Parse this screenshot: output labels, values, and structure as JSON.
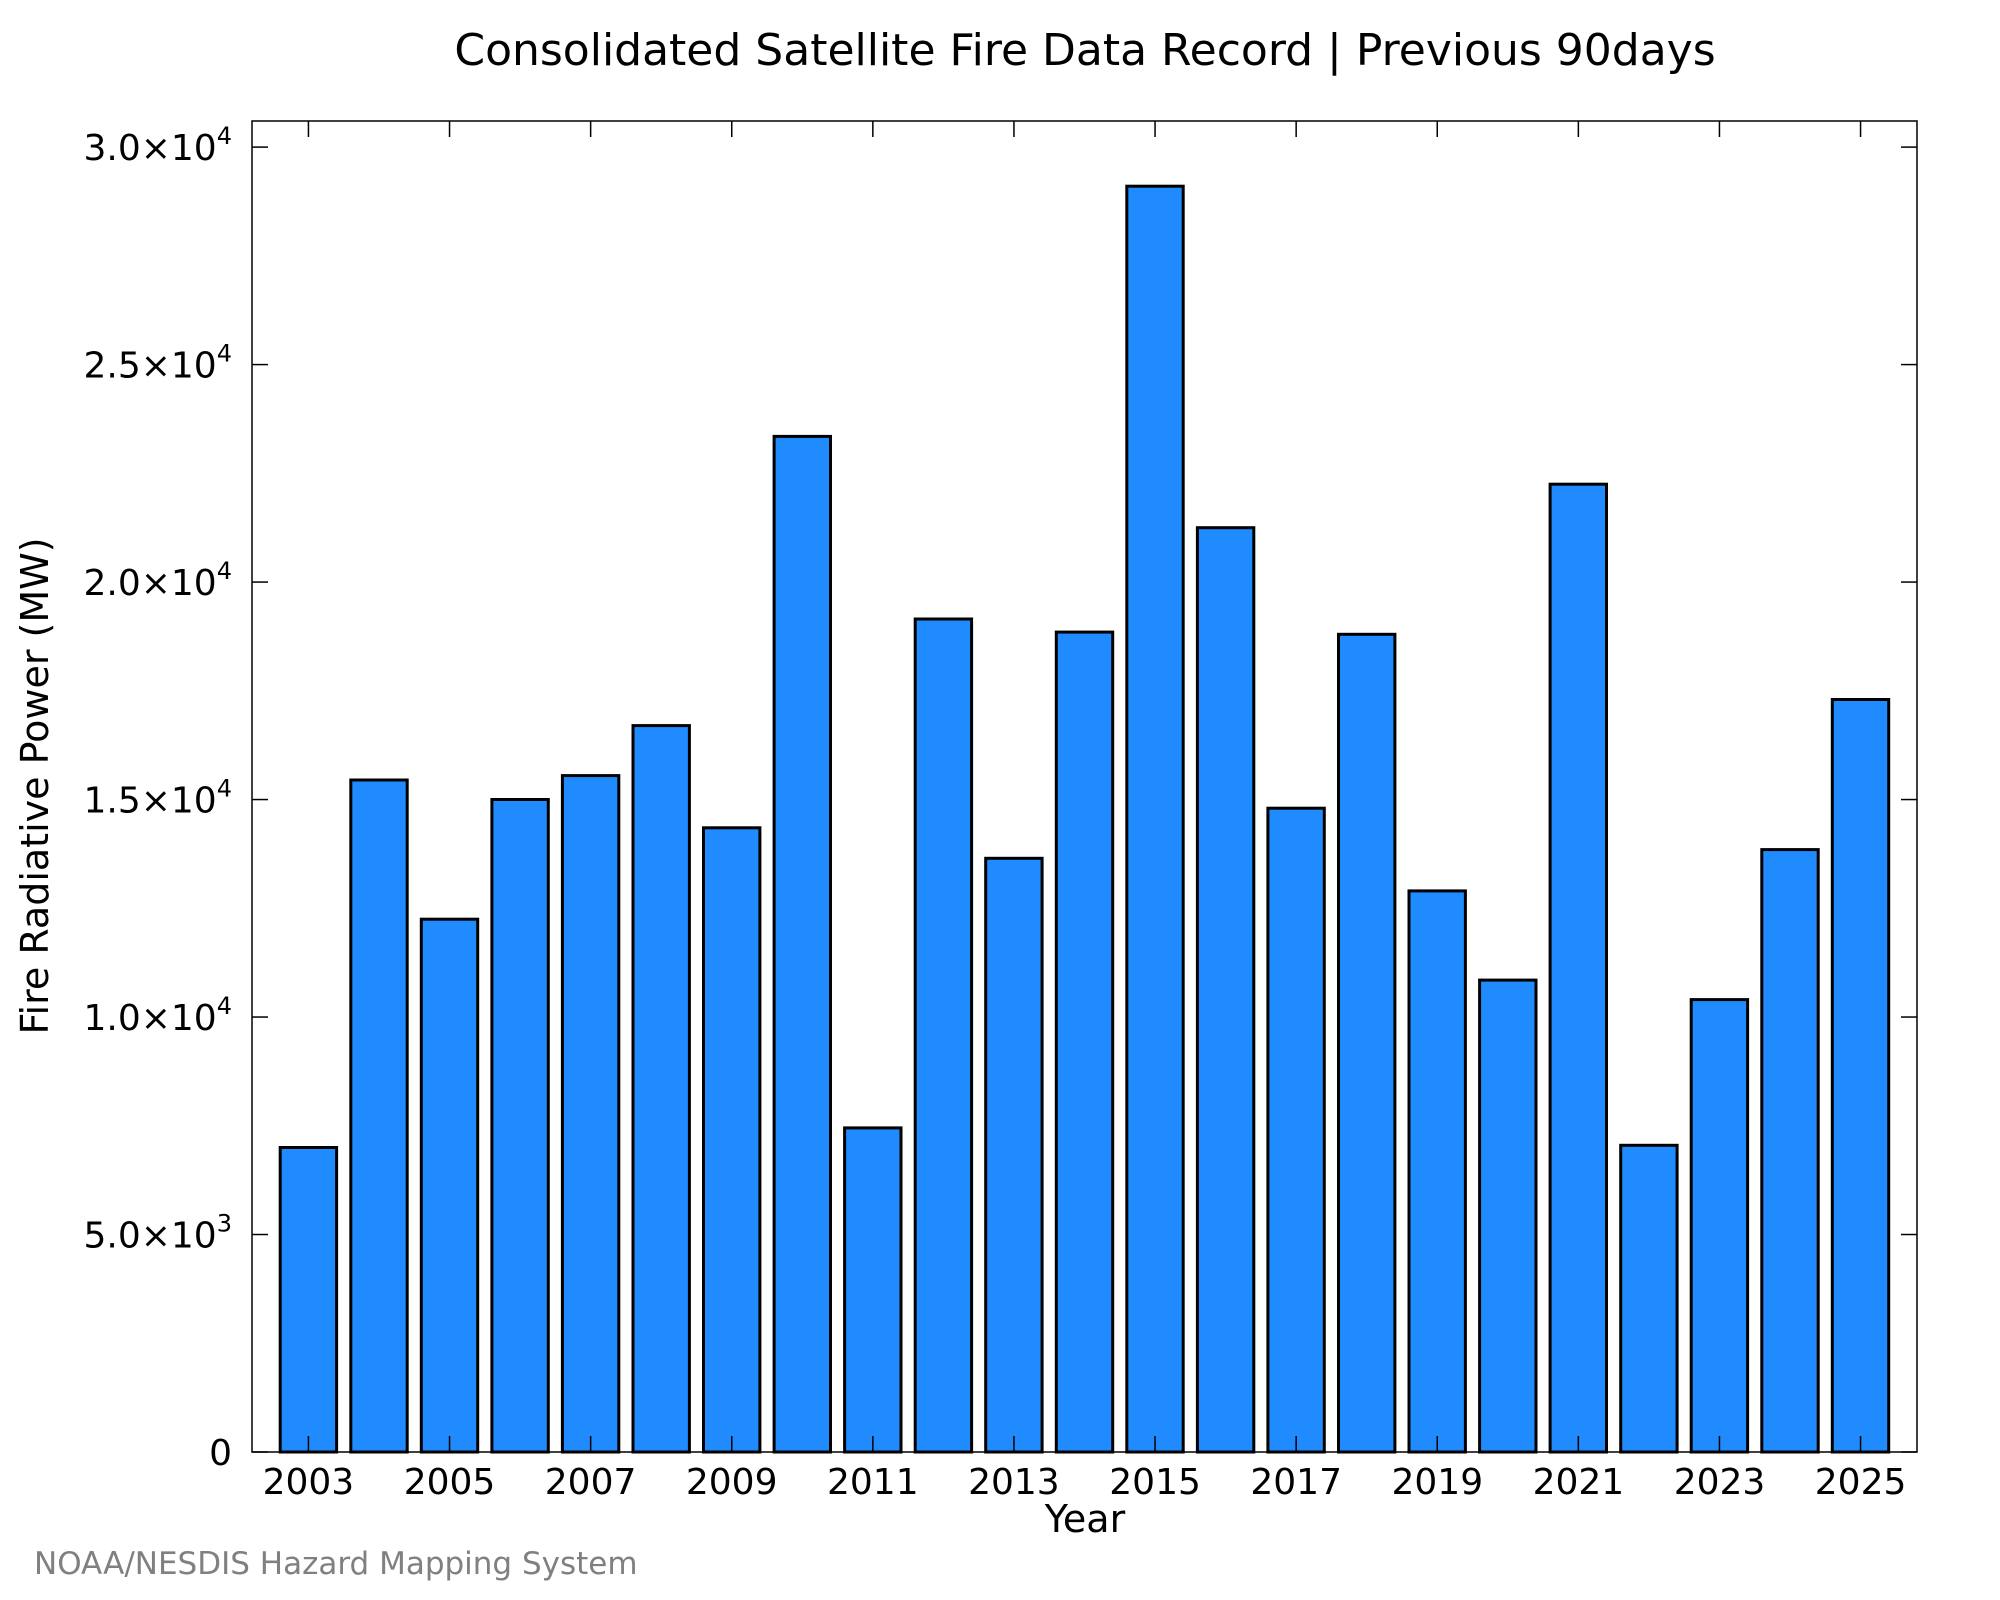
{
  "chart_data": {
    "type": "bar",
    "title": "Consolidated Satellite Fire Data Record | Previous 90days",
    "xlabel": "Year",
    "ylabel": "Fire Radiative Power (MW)",
    "ylim": [
      0,
      30600
    ],
    "xlim": [
      2002.2,
      2025.8
    ],
    "grid": false,
    "colors": {
      "bar_fill": "#1f8bff",
      "bar_edge": "#000000"
    },
    "x_ticks": [
      2003,
      2005,
      2007,
      2009,
      2011,
      2013,
      2015,
      2017,
      2019,
      2021,
      2023,
      2025
    ],
    "x_tick_labels": [
      "2003",
      "2005",
      "2007",
      "2009",
      "2011",
      "2013",
      "2015",
      "2017",
      "2019",
      "2021",
      "2023",
      "2025"
    ],
    "y_ticks": [
      {
        "value": 0,
        "mantissa": "0",
        "exponent": ""
      },
      {
        "value": 5000,
        "mantissa": "5.0×10",
        "exponent": "3"
      },
      {
        "value": 10000,
        "mantissa": "1.0×10",
        "exponent": "4"
      },
      {
        "value": 15000,
        "mantissa": "1.5×10",
        "exponent": "4"
      },
      {
        "value": 20000,
        "mantissa": "2.0×10",
        "exponent": "4"
      },
      {
        "value": 25000,
        "mantissa": "2.5×10",
        "exponent": "4"
      },
      {
        "value": 30000,
        "mantissa": "3.0×10",
        "exponent": "4"
      }
    ],
    "categories": [
      2003,
      2004,
      2005,
      2006,
      2007,
      2008,
      2009,
      2010,
      2011,
      2012,
      2013,
      2014,
      2015,
      2016,
      2017,
      2018,
      2019,
      2020,
      2021,
      2022,
      2023,
      2024,
      2025
    ],
    "values": [
      7000,
      15450,
      12250,
      15000,
      15550,
      16700,
      14350,
      23350,
      7450,
      19150,
      13650,
      18850,
      29100,
      21250,
      14800,
      18800,
      12900,
      10850,
      22250,
      7050,
      10400,
      13850,
      17300
    ]
  },
  "credit": "NOAA/NESDIS Hazard Mapping System"
}
